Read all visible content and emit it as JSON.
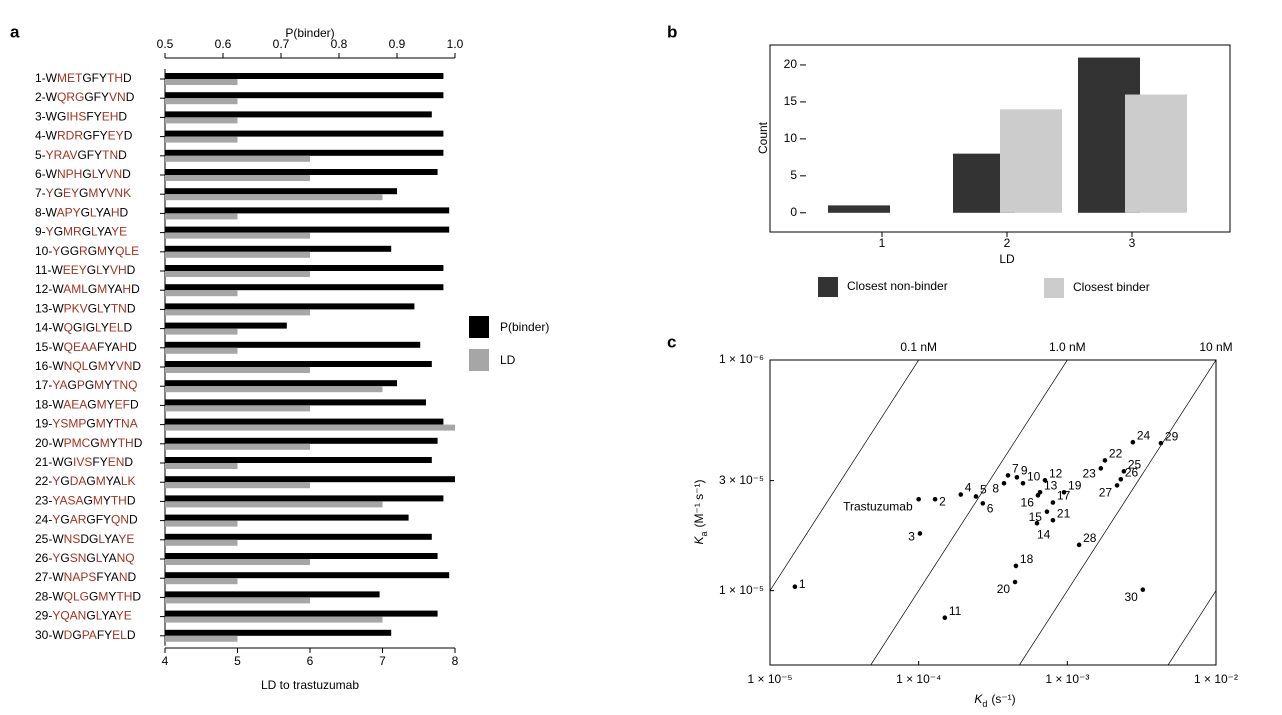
{
  "chart_data": [
    {
      "type": "hbar",
      "panel": "a",
      "highlight_color": "#a5321f",
      "categories": [
        [
          "1-W",
          "MET",
          "GFY",
          "TH",
          "D"
        ],
        [
          "2-W",
          "QRG",
          "GFY",
          "VN",
          "D"
        ],
        [
          "3-WG",
          "IHS",
          "FY",
          "EH",
          "D"
        ],
        [
          "4-W",
          "RDR",
          "GFY",
          "EY",
          "D"
        ],
        [
          "5-",
          "YRAV",
          "GFY",
          "TN",
          "D"
        ],
        [
          "6-W",
          "NPH",
          "G",
          "L",
          "Y",
          "VN",
          "D"
        ],
        [
          "7-",
          "Y",
          "G",
          "EY",
          "G",
          "M",
          "Y",
          "VNK"
        ],
        [
          "8-W",
          "APY",
          "G",
          "L",
          "YA",
          "H",
          "D"
        ],
        [
          "9-",
          "Y",
          "G",
          "MR",
          "G",
          "L",
          "YA",
          "YE"
        ],
        [
          "10-",
          "Y",
          "GG",
          "R",
          "G",
          "M",
          "Y",
          "QLE"
        ],
        [
          "11-W",
          "EEY",
          "G",
          "L",
          "Y",
          "VH",
          "D"
        ],
        [
          "12-W",
          "AML",
          "G",
          "M",
          "YA",
          "H",
          "D"
        ],
        [
          "13-W",
          "PKV",
          "G",
          "L",
          "Y",
          "TN",
          "D"
        ],
        [
          "14-W",
          "Q",
          "G",
          "I",
          "G",
          "L",
          "Y",
          "EL",
          "D"
        ],
        [
          "15-W",
          "QEAA",
          "FYA",
          "H",
          "D"
        ],
        [
          "16-W",
          "NQL",
          "G",
          "M",
          "Y",
          "VN",
          "D"
        ],
        [
          "17-",
          "YA",
          "G",
          "P",
          "G",
          "M",
          "Y",
          "TNQ"
        ],
        [
          "18-W",
          "AEA",
          "G",
          "M",
          "Y",
          "EF",
          "D"
        ],
        [
          "19-",
          "YSMP",
          "G",
          "M",
          "Y",
          "TNA"
        ],
        [
          "20-W",
          "PMC",
          "G",
          "M",
          "Y",
          "TH",
          "D"
        ],
        [
          "21-WG",
          "IVS",
          "FY",
          "EN",
          "D"
        ],
        [
          "22-",
          "Y",
          "G",
          "DA",
          "G",
          "M",
          "YA",
          "LK"
        ],
        [
          "23-",
          "YASA",
          "G",
          "M",
          "Y",
          "TH",
          "D"
        ],
        [
          "24-",
          "Y",
          "G",
          "AR",
          "GFY",
          "QN",
          "D"
        ],
        [
          "25-W",
          "NS",
          "DG",
          "L",
          "YA",
          "YE"
        ],
        [
          "26-",
          "Y",
          "G",
          "SN",
          "G",
          "L",
          "YA",
          "NQ"
        ],
        [
          "27-W",
          "NAPS",
          "FYA",
          "N",
          "D"
        ],
        [
          "28-W",
          "QLG",
          "G",
          "M",
          "Y",
          "TH",
          "D"
        ],
        [
          "29-",
          "YQAN",
          "G",
          "L",
          "YA",
          "YE"
        ],
        [
          "30-W",
          "D",
          "G",
          "PA",
          "FY",
          "EL",
          "D"
        ]
      ],
      "series": [
        {
          "name": "P(binder)",
          "color": "#000000",
          "axis": "x2",
          "values": [
            0.98,
            0.98,
            0.96,
            0.98,
            0.98,
            0.97,
            0.9,
            0.99,
            0.99,
            0.89,
            0.98,
            0.98,
            0.93,
            0.71,
            0.94,
            0.96,
            0.9,
            0.95,
            0.98,
            0.97,
            0.96,
            1.0,
            0.98,
            0.92,
            0.96,
            0.97,
            0.99,
            0.87,
            0.97,
            0.89
          ]
        },
        {
          "name": "LD",
          "color": "#a6a6a6",
          "values": [
            5,
            5,
            5,
            5,
            6,
            6,
            7,
            5,
            6,
            6,
            6,
            5,
            6,
            5,
            5,
            6,
            7,
            6,
            8,
            6,
            5,
            6,
            7,
            5,
            5,
            6,
            5,
            6,
            7,
            5
          ]
        }
      ],
      "xlabel": "LD to trastuzumab",
      "xlim": [
        4,
        8
      ],
      "xticks": [
        4,
        5,
        6,
        7,
        8
      ],
      "x2label": "P(binder)",
      "x2lim": [
        0.5,
        1
      ],
      "x2ticks": [
        0.5,
        0.6,
        0.7,
        0.8,
        0.9,
        {
          "value": 1,
          "label": "1.0"
        }
      ]
    },
    {
      "type": "bar",
      "panel": "b",
      "categories": [
        "1",
        "2",
        "3"
      ],
      "xlabel": "LD",
      "ylabel": "Count",
      "ylim": [
        -2.6,
        22.7
      ],
      "yticks": [
        0,
        5,
        10,
        15,
        20
      ],
      "series": [
        {
          "name": "Closest non-binder",
          "color": "#333333",
          "values": [
            1,
            8,
            21
          ]
        },
        {
          "name": "Closest binder",
          "color": "#cccccc",
          "values": [
            0,
            14,
            16
          ]
        }
      ]
    },
    {
      "type": "scatter",
      "panel": "c",
      "log_x": true,
      "log_y": true,
      "color": "#000000",
      "xlabel": {
        "symbol": "K",
        "subscript": "d",
        "unit": "(s⁻¹)"
      },
      "ylabel": {
        "symbol": "K",
        "subscript": "a",
        "unit": "(M⁻¹ s⁻¹)"
      },
      "xlim": [
        1e-05,
        0.01
      ],
      "xticks": [
        {
          "value": 1e-05,
          "label": "1 × 10⁻⁵"
        },
        {
          "value": 0.0001,
          "label": "1 × 10⁻⁴"
        },
        {
          "value": 0.001,
          "label": "1 × 10⁻³"
        },
        {
          "value": 0.01,
          "label": "1 × 10⁻²"
        }
      ],
      "ylim": [
        47600,
        1000000
      ],
      "yticks": [
        {
          "value": 100000,
          "label": "1 × 10⁻⁵"
        },
        {
          "value": 300000,
          "label": "3 × 10⁻⁵"
        },
        {
          "value": 1000000,
          "label": "1 × 10⁻⁶"
        }
      ],
      "isolines": [
        {
          "value": 1e-10,
          "label": "0.1 nM"
        },
        {
          "value": 1e-09,
          "label": "1.0 nM"
        },
        {
          "value": 1e-08,
          "label": "10 nM"
        },
        1e-07
      ],
      "point_labels": [
        "1",
        "2",
        "3",
        "4",
        "5",
        "6",
        "7",
        "8",
        "9",
        "10",
        "11",
        "12",
        "13",
        "14",
        "15",
        "16",
        "17",
        "18",
        "19",
        "20",
        "21",
        "22",
        "23",
        "24",
        "25",
        "26",
        "27",
        "28",
        "29",
        "30",
        "Trastuzumab"
      ],
      "x": [
        1.47e-05,
        0.000129,
        0.000102,
        0.000192,
        0.000243,
        0.00027,
        0.000399,
        0.000375,
        0.000458,
        0.000503,
        0.00015,
        0.000707,
        0.000655,
        0.000625,
        0.000729,
        0.000634,
        0.0008,
        0.000451,
        0.00095,
        0.000445,
        0.0008,
        0.00179,
        0.00168,
        0.00276,
        0.0024,
        0.00229,
        0.00216,
        0.0012,
        0.00426,
        0.00322,
        0.0001
      ],
      "values": [
        104000,
        249000,
        177000,
        261000,
        256000,
        239000,
        316000,
        292000,
        310000,
        292000,
        76300,
        301000,
        267000,
        196000,
        220000,
        259000,
        241000,
        128000,
        267000,
        109000,
        202000,
        367000,
        339000,
        440000,
        329000,
        304000,
        286000,
        158000,
        436000,
        101000,
        249000
      ]
    }
  ]
}
